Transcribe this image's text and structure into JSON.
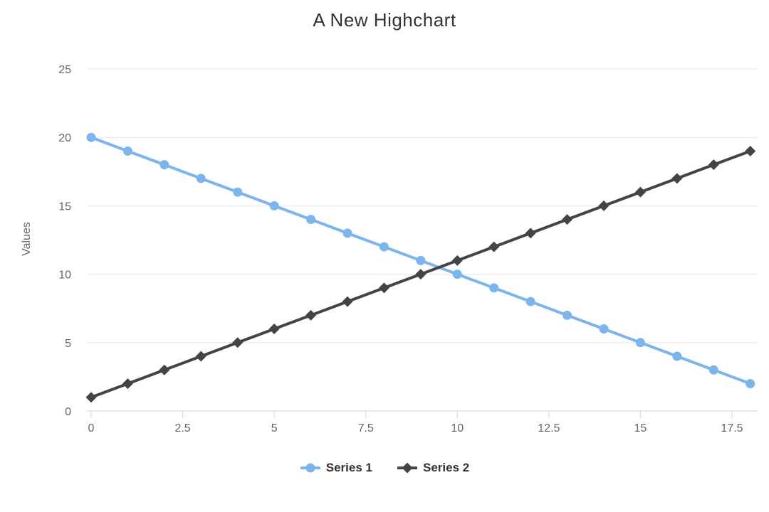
{
  "chart_data": {
    "type": "line",
    "title": "A New Highchart",
    "xlabel": "",
    "ylabel": "Values",
    "x": [
      0,
      1,
      2,
      3,
      4,
      5,
      6,
      7,
      8,
      9,
      10,
      11,
      12,
      13,
      14,
      15,
      16,
      17,
      18
    ],
    "series": [
      {
        "name": "Series 1",
        "color": "#7cb5ec",
        "marker": "circle",
        "values": [
          20,
          19,
          18,
          17,
          16,
          15,
          14,
          13,
          12,
          11,
          10,
          9,
          8,
          7,
          6,
          5,
          4,
          3,
          2
        ]
      },
      {
        "name": "Series 2",
        "color": "#434348",
        "marker": "diamond",
        "values": [
          1,
          2,
          3,
          4,
          5,
          6,
          7,
          8,
          9,
          10,
          11,
          12,
          13,
          14,
          15,
          16,
          17,
          18,
          19
        ]
      }
    ],
    "xticks": [
      "0",
      "2.5",
      "5",
      "7.5",
      "10",
      "12.5",
      "15",
      "17.5"
    ],
    "xtick_values": [
      0,
      2.5,
      5,
      7.5,
      10,
      12.5,
      15,
      17.5
    ],
    "yticks": [
      "0",
      "5",
      "10",
      "15",
      "20",
      "25"
    ],
    "ytick_values": [
      0,
      5,
      10,
      15,
      20,
      25
    ],
    "xlim": [
      0,
      18.2
    ],
    "ylim": [
      0,
      25
    ],
    "grid": "horizontal",
    "legend_position": "bottom",
    "colors": {
      "grid_line": "#e6e6e6",
      "axis_line": "#ccd6eb",
      "tick_label": "#666666",
      "title_text": "#333333",
      "legend_text": "#333333"
    }
  }
}
